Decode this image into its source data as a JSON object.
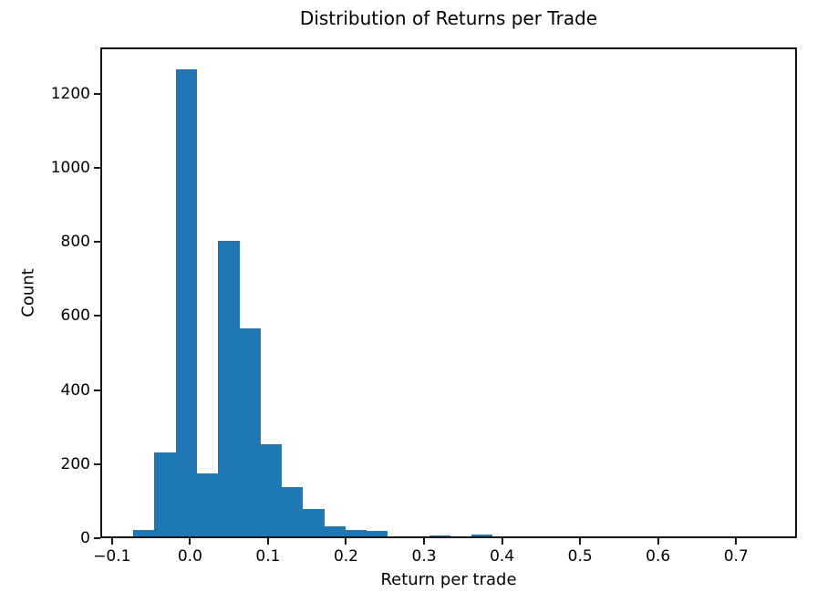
{
  "chart_data": {
    "type": "bar",
    "subtype": "histogram",
    "title": "Distribution of Returns per Trade",
    "xlabel": "Return per trade",
    "ylabel": "Count",
    "bar_color": "#1f77b4",
    "axis_color": "#000000",
    "grid": false,
    "legend": "none",
    "xlim": [
      -0.115,
      0.778
    ],
    "ylim": [
      0,
      1325
    ],
    "xticks": [
      {
        "value": -0.1,
        "label": "−0.1"
      },
      {
        "value": 0.0,
        "label": "0.0"
      },
      {
        "value": 0.1,
        "label": "0.1"
      },
      {
        "value": 0.2,
        "label": "0.2"
      },
      {
        "value": 0.3,
        "label": "0.3"
      },
      {
        "value": 0.4,
        "label": "0.4"
      },
      {
        "value": 0.5,
        "label": "0.5"
      },
      {
        "value": 0.6,
        "label": "0.6"
      },
      {
        "value": 0.7,
        "label": "0.7"
      }
    ],
    "yticks": [
      {
        "value": 0,
        "label": "0"
      },
      {
        "value": 200,
        "label": "200"
      },
      {
        "value": 400,
        "label": "400"
      },
      {
        "value": 600,
        "label": "600"
      },
      {
        "value": 800,
        "label": "800"
      },
      {
        "value": 1000,
        "label": "1000"
      },
      {
        "value": 1200,
        "label": "1200"
      }
    ],
    "bins": [
      {
        "x0": -0.073,
        "x1": -0.046,
        "count": 17
      },
      {
        "x0": -0.046,
        "x1": -0.018,
        "count": 227
      },
      {
        "x0": -0.018,
        "x1": 0.009,
        "count": 1260
      },
      {
        "x0": 0.009,
        "x1": 0.036,
        "count": 171
      },
      {
        "x0": 0.036,
        "x1": 0.064,
        "count": 799
      },
      {
        "x0": 0.064,
        "x1": 0.091,
        "count": 561
      },
      {
        "x0": 0.091,
        "x1": 0.118,
        "count": 249
      },
      {
        "x0": 0.118,
        "x1": 0.145,
        "count": 134
      },
      {
        "x0": 0.145,
        "x1": 0.172,
        "count": 75
      },
      {
        "x0": 0.172,
        "x1": 0.199,
        "count": 27
      },
      {
        "x0": 0.199,
        "x1": 0.226,
        "count": 18
      },
      {
        "x0": 0.226,
        "x1": 0.253,
        "count": 16
      },
      {
        "x0": 0.253,
        "x1": 0.28,
        "count": 0
      },
      {
        "x0": 0.28,
        "x1": 0.307,
        "count": 0
      },
      {
        "x0": 0.307,
        "x1": 0.334,
        "count": 3
      },
      {
        "x0": 0.334,
        "x1": 0.361,
        "count": 0
      },
      {
        "x0": 0.361,
        "x1": 0.388,
        "count": 6
      }
    ]
  }
}
